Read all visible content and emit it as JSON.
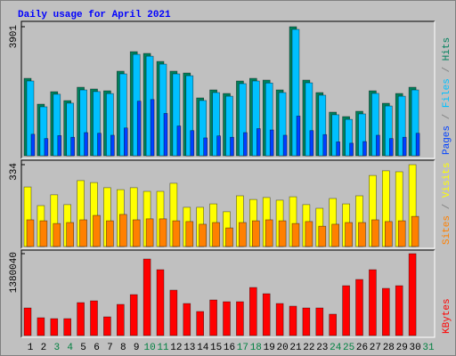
{
  "chart_data": [
    {
      "type": "bar",
      "title": "Daily usage for April 2021",
      "categories": [
        "1",
        "2",
        "3",
        "4",
        "5",
        "6",
        "7",
        "8",
        "9",
        "10",
        "11",
        "12",
        "13",
        "14",
        "15",
        "16",
        "17",
        "18",
        "19",
        "20",
        "21",
        "22",
        "23",
        "24",
        "25",
        "26",
        "27",
        "28",
        "29",
        "30",
        "31"
      ],
      "category_colors": [
        "#000000",
        "#000000",
        "#008040",
        "#008040",
        "#000000",
        "#000000",
        "#000000",
        "#000000",
        "#000000",
        "#008040",
        "#008040",
        "#000000",
        "#000000",
        "#000000",
        "#000000",
        "#000000",
        "#008040",
        "#008040",
        "#000000",
        "#000000",
        "#000000",
        "#000000",
        "#000000",
        "#008040",
        "#008040",
        "#000000",
        "#000000",
        "#000000",
        "#000000",
        "#000000",
        "#008040"
      ],
      "legend_separator": " / ",
      "series": [
        {
          "name": "Hits",
          "color": "#00805c",
          "values": [
            2340,
            1560,
            1937,
            1668,
            2071,
            2018,
            1964,
            2556,
            3147,
            3094,
            2851,
            2556,
            2502,
            1749,
            1991,
            1883,
            2260,
            2340,
            2287,
            1991,
            3901,
            2287,
            1910,
            1318,
            1184,
            1345,
            1964,
            1587,
            1883,
            2071,
            null
          ]
        },
        {
          "name": "Files",
          "color": "#00c0ff",
          "values": [
            2260,
            1480,
            1860,
            1590,
            1990,
            1940,
            1880,
            2475,
            3065,
            3010,
            2770,
            2475,
            2420,
            1670,
            1910,
            1800,
            2180,
            2260,
            2200,
            1910,
            3820,
            2205,
            1830,
            1240,
            1100,
            1265,
            1885,
            1505,
            1800,
            1990,
            null
          ]
        },
        {
          "name": "Pages",
          "color": "#0040ff",
          "values": [
            650,
            520,
            610,
            560,
            700,
            680,
            620,
            840,
            1650,
            1700,
            1280,
            900,
            760,
            540,
            600,
            560,
            700,
            820,
            780,
            620,
            1200,
            760,
            640,
            420,
            380,
            430,
            620,
            520,
            560,
            680,
            null
          ]
        }
      ],
      "ylim": [
        0,
        3901
      ],
      "yticks": [
        3901
      ]
    },
    {
      "type": "bar",
      "legend_separator": " / ",
      "series": [
        {
          "name": "Visits",
          "color": "#ffff00",
          "values": [
            243,
            167,
            211,
            171,
            269,
            261,
            240,
            232,
            240,
            225,
            225,
            258,
            160,
            160,
            174,
            142,
            207,
            192,
            200,
            189,
            203,
            171,
            156,
            196,
            174,
            207,
            290,
            309,
            305,
            334,
            null
          ]
        },
        {
          "name": "Sites",
          "color": "#ff8000",
          "values": [
            109,
            105,
            94,
            98,
            109,
            127,
            105,
            131,
            109,
            113,
            113,
            105,
            102,
            91,
            98,
            76,
            98,
            105,
            109,
            105,
            94,
            102,
            83,
            91,
            98,
            98,
            109,
            102,
            105,
            123,
            null
          ]
        }
      ],
      "ylim": [
        0,
        334
      ],
      "yticks": [
        334
      ]
    },
    {
      "type": "bar",
      "series": [
        {
          "name": "KBytes",
          "color": "#ff0000",
          "values": [
            465000,
            300000,
            285000,
            285000,
            555000,
            585000,
            315000,
            525000,
            690000,
            1290000,
            1110000,
            765000,
            540000,
            405000,
            600000,
            570000,
            570000,
            810000,
            705000,
            540000,
            495000,
            465000,
            465000,
            360000,
            840000,
            945000,
            1110000,
            795000,
            840000,
            1380040,
            null
          ]
        }
      ],
      "ylim": [
        0,
        1380040
      ],
      "yticks": [
        1380040
      ]
    }
  ]
}
